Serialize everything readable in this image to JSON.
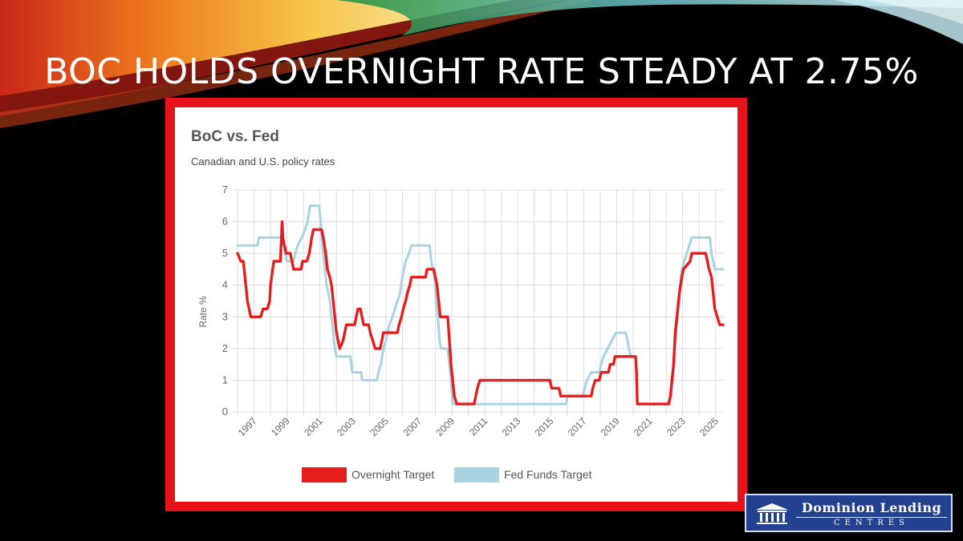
{
  "slide": {
    "title": "BOC HOLDS OVERNIGHT RATE STEADY AT 2.75%"
  },
  "logo": {
    "main": "Dominion Lending",
    "sub": "CENTRES"
  },
  "colors": {
    "frame": "#e8121a",
    "boc_line": "#e41e1e",
    "fed_line": "#a8d4e2",
    "logo_bg": "#22418f"
  },
  "chart_data": {
    "type": "line",
    "title": "BoC vs. Fed",
    "subtitle": "Canadian and U.S. policy rates",
    "xlabel": "",
    "ylabel": "Rate %",
    "xlim": [
      1996.0,
      2025.45
    ],
    "ylim": [
      0,
      7
    ],
    "yticks": [
      "0",
      "1",
      "2",
      "3",
      "4",
      "5",
      "6",
      "7"
    ],
    "xticks": [
      "1997",
      "1999",
      "2001",
      "2003",
      "2005",
      "2007",
      "2009",
      "2011",
      "2013",
      "2015",
      "2017",
      "2019",
      "2021",
      "2023",
      "2025"
    ],
    "grid": true,
    "legend_position": "bottom",
    "series": [
      {
        "name": "Overnight Target",
        "color": "#e41e1e",
        "points": [
          [
            1996.0,
            5.0
          ],
          [
            1996.2,
            4.75
          ],
          [
            1996.35,
            4.75
          ],
          [
            1996.5,
            4.0
          ],
          [
            1996.6,
            3.5
          ],
          [
            1996.7,
            3.25
          ],
          [
            1996.8,
            3.0
          ],
          [
            1997.4,
            3.0
          ],
          [
            1997.55,
            3.25
          ],
          [
            1997.8,
            3.25
          ],
          [
            1997.95,
            3.5
          ],
          [
            1998.0,
            4.0
          ],
          [
            1998.2,
            4.75
          ],
          [
            1998.6,
            4.75
          ],
          [
            1998.7,
            6.0
          ],
          [
            1998.75,
            5.5
          ],
          [
            1998.85,
            5.25
          ],
          [
            1998.95,
            5.0
          ],
          [
            1999.2,
            5.0
          ],
          [
            1999.3,
            4.75
          ],
          [
            1999.4,
            4.5
          ],
          [
            1999.85,
            4.5
          ],
          [
            1999.95,
            4.75
          ],
          [
            2000.2,
            4.75
          ],
          [
            2000.35,
            5.0
          ],
          [
            2000.5,
            5.5
          ],
          [
            2000.6,
            5.75
          ],
          [
            2001.1,
            5.75
          ],
          [
            2001.2,
            5.5
          ],
          [
            2001.35,
            5.0
          ],
          [
            2001.45,
            4.5
          ],
          [
            2001.6,
            4.25
          ],
          [
            2001.7,
            4.0
          ],
          [
            2001.8,
            3.5
          ],
          [
            2001.9,
            3.0
          ],
          [
            2002.0,
            2.5
          ],
          [
            2002.1,
            2.25
          ],
          [
            2002.2,
            2.0
          ],
          [
            2002.4,
            2.25
          ],
          [
            2002.5,
            2.5
          ],
          [
            2002.6,
            2.75
          ],
          [
            2003.1,
            2.75
          ],
          [
            2003.2,
            3.0
          ],
          [
            2003.3,
            3.25
          ],
          [
            2003.45,
            3.25
          ],
          [
            2003.55,
            3.0
          ],
          [
            2003.65,
            2.75
          ],
          [
            2003.95,
            2.75
          ],
          [
            2004.05,
            2.5
          ],
          [
            2004.2,
            2.25
          ],
          [
            2004.35,
            2.0
          ],
          [
            2004.65,
            2.0
          ],
          [
            2004.75,
            2.25
          ],
          [
            2004.85,
            2.5
          ],
          [
            2005.7,
            2.5
          ],
          [
            2005.8,
            2.75
          ],
          [
            2005.95,
            3.0
          ],
          [
            2006.05,
            3.25
          ],
          [
            2006.2,
            3.5
          ],
          [
            2006.3,
            3.75
          ],
          [
            2006.45,
            4.0
          ],
          [
            2006.55,
            4.25
          ],
          [
            2007.4,
            4.25
          ],
          [
            2007.5,
            4.5
          ],
          [
            2007.9,
            4.5
          ],
          [
            2008.0,
            4.25
          ],
          [
            2008.1,
            4.0
          ],
          [
            2008.2,
            3.5
          ],
          [
            2008.3,
            3.0
          ],
          [
            2008.75,
            3.0
          ],
          [
            2008.85,
            2.25
          ],
          [
            2008.95,
            1.5
          ],
          [
            2009.05,
            1.0
          ],
          [
            2009.15,
            0.5
          ],
          [
            2009.3,
            0.25
          ],
          [
            2010.35,
            0.25
          ],
          [
            2010.45,
            0.5
          ],
          [
            2010.55,
            0.75
          ],
          [
            2010.7,
            1.0
          ],
          [
            2014.95,
            1.0
          ],
          [
            2015.05,
            0.75
          ],
          [
            2015.5,
            0.75
          ],
          [
            2015.6,
            0.5
          ],
          [
            2017.45,
            0.5
          ],
          [
            2017.55,
            0.75
          ],
          [
            2017.7,
            1.0
          ],
          [
            2017.95,
            1.0
          ],
          [
            2018.05,
            1.25
          ],
          [
            2018.5,
            1.25
          ],
          [
            2018.6,
            1.5
          ],
          [
            2018.8,
            1.5
          ],
          [
            2018.9,
            1.75
          ],
          [
            2020.15,
            1.75
          ],
          [
            2020.2,
            1.25
          ],
          [
            2020.25,
            0.25
          ],
          [
            2022.15,
            0.25
          ],
          [
            2022.25,
            0.5
          ],
          [
            2022.35,
            1.0
          ],
          [
            2022.45,
            1.5
          ],
          [
            2022.55,
            2.5
          ],
          [
            2022.7,
            3.25
          ],
          [
            2022.8,
            3.75
          ],
          [
            2022.95,
            4.25
          ],
          [
            2023.05,
            4.5
          ],
          [
            2023.45,
            4.75
          ],
          [
            2023.55,
            5.0
          ],
          [
            2024.4,
            5.0
          ],
          [
            2024.5,
            4.75
          ],
          [
            2024.6,
            4.5
          ],
          [
            2024.75,
            4.25
          ],
          [
            2024.85,
            3.75
          ],
          [
            2024.95,
            3.25
          ],
          [
            2025.1,
            3.0
          ],
          [
            2025.25,
            2.75
          ],
          [
            2025.45,
            2.75
          ]
        ]
      },
      {
        "name": "Fed Funds Target",
        "color": "#a8d4e2",
        "points": [
          [
            1996.0,
            5.25
          ],
          [
            1997.2,
            5.25
          ],
          [
            1997.3,
            5.5
          ],
          [
            1998.7,
            5.5
          ],
          [
            1998.8,
            5.25
          ],
          [
            1998.9,
            5.0
          ],
          [
            1999.0,
            4.75
          ],
          [
            1999.4,
            4.75
          ],
          [
            1999.5,
            5.0
          ],
          [
            1999.65,
            5.25
          ],
          [
            1999.9,
            5.5
          ],
          [
            2000.1,
            5.75
          ],
          [
            2000.25,
            6.0
          ],
          [
            2000.4,
            6.5
          ],
          [
            2000.95,
            6.5
          ],
          [
            2001.05,
            6.0
          ],
          [
            2001.1,
            5.5
          ],
          [
            2001.2,
            5.0
          ],
          [
            2001.3,
            4.5
          ],
          [
            2001.4,
            4.0
          ],
          [
            2001.5,
            3.75
          ],
          [
            2001.6,
            3.5
          ],
          [
            2001.7,
            3.0
          ],
          [
            2001.8,
            2.5
          ],
          [
            2001.9,
            2.0
          ],
          [
            2002.0,
            1.75
          ],
          [
            2002.85,
            1.75
          ],
          [
            2002.95,
            1.25
          ],
          [
            2003.5,
            1.25
          ],
          [
            2003.55,
            1.0
          ],
          [
            2004.45,
            1.0
          ],
          [
            2004.55,
            1.25
          ],
          [
            2004.7,
            1.5
          ],
          [
            2004.85,
            2.0
          ],
          [
            2005.0,
            2.25
          ],
          [
            2005.2,
            2.75
          ],
          [
            2005.4,
            3.0
          ],
          [
            2005.55,
            3.25
          ],
          [
            2005.7,
            3.5
          ],
          [
            2005.85,
            3.75
          ],
          [
            2006.0,
            4.25
          ],
          [
            2006.2,
            4.75
          ],
          [
            2006.4,
            5.0
          ],
          [
            2006.55,
            5.25
          ],
          [
            2007.65,
            5.25
          ],
          [
            2007.75,
            4.75
          ],
          [
            2007.85,
            4.5
          ],
          [
            2007.95,
            4.25
          ],
          [
            2008.05,
            3.5
          ],
          [
            2008.15,
            3.0
          ],
          [
            2008.25,
            2.25
          ],
          [
            2008.35,
            2.0
          ],
          [
            2008.75,
            2.0
          ],
          [
            2008.85,
            1.5
          ],
          [
            2008.95,
            1.0
          ],
          [
            2009.05,
            0.25
          ],
          [
            2015.95,
            0.25
          ],
          [
            2016.0,
            0.5
          ],
          [
            2016.95,
            0.5
          ],
          [
            2017.05,
            0.75
          ],
          [
            2017.2,
            1.0
          ],
          [
            2017.45,
            1.25
          ],
          [
            2017.95,
            1.25
          ],
          [
            2018.05,
            1.5
          ],
          [
            2018.2,
            1.75
          ],
          [
            2018.45,
            2.0
          ],
          [
            2018.7,
            2.25
          ],
          [
            2018.95,
            2.5
          ],
          [
            2019.55,
            2.5
          ],
          [
            2019.65,
            2.25
          ],
          [
            2019.75,
            2.0
          ],
          [
            2019.85,
            1.75
          ],
          [
            2020.15,
            1.75
          ],
          [
            2020.2,
            1.25
          ],
          [
            2020.25,
            0.25
          ],
          [
            2022.2,
            0.25
          ],
          [
            2022.3,
            0.5
          ],
          [
            2022.4,
            1.0
          ],
          [
            2022.5,
            1.75
          ],
          [
            2022.6,
            2.5
          ],
          [
            2022.75,
            3.25
          ],
          [
            2022.85,
            4.0
          ],
          [
            2022.95,
            4.5
          ],
          [
            2023.1,
            4.75
          ],
          [
            2023.25,
            5.0
          ],
          [
            2023.4,
            5.25
          ],
          [
            2023.55,
            5.5
          ],
          [
            2024.65,
            5.5
          ],
          [
            2024.75,
            5.0
          ],
          [
            2024.85,
            4.75
          ],
          [
            2024.95,
            4.5
          ],
          [
            2025.45,
            4.5
          ]
        ]
      }
    ]
  }
}
